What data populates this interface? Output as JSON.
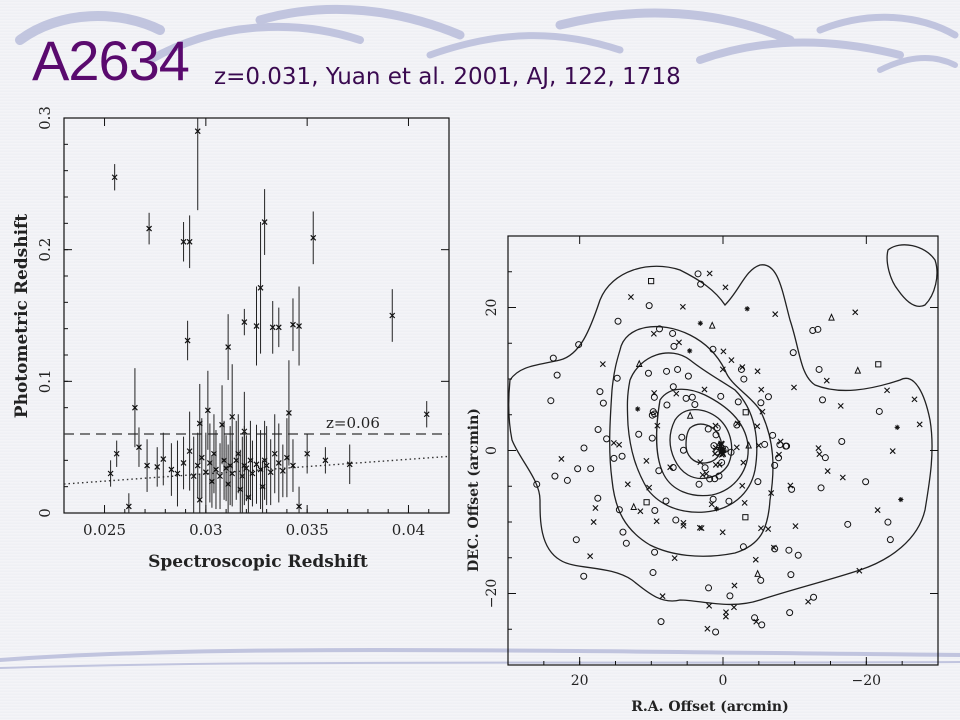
{
  "slide": {
    "title": "A2634",
    "subtitle": "z=0.031, Yuan et al. 2001, AJ, 122, 1718",
    "accent_color": "#5a0a6e"
  },
  "chart_data": [
    {
      "type": "scatter",
      "xlabel": "Spectroscopic Redshift",
      "ylabel": "Photometric Redshift",
      "xlim": [
        0.023,
        0.042
      ],
      "ylim": [
        0,
        0.3
      ],
      "xticks": [
        "0.025",
        "0.03",
        "0.035",
        "0.04"
      ],
      "xtick_values": [
        0.025,
        0.03,
        0.035,
        0.04
      ],
      "yticks": [
        "0",
        "0.1",
        "0.2",
        "0.3"
      ],
      "ytick_values": [
        0,
        0.1,
        0.2,
        0.3
      ],
      "annotation": "z=0.06",
      "threshold_line": 0.06,
      "dotted_fit": [
        [
          0.023,
          0.022
        ],
        [
          0.042,
          0.043
        ]
      ],
      "points": [
        [
          0.0255,
          0.255,
          0.01
        ],
        [
          0.0272,
          0.216,
          0.012
        ],
        [
          0.0289,
          0.206,
          0.015
        ],
        [
          0.0292,
          0.206,
          0.02
        ],
        [
          0.0296,
          0.29,
          0.06
        ],
        [
          0.0329,
          0.221,
          0.025
        ],
        [
          0.0353,
          0.209,
          0.02
        ],
        [
          0.0327,
          0.171,
          0.05
        ],
        [
          0.0291,
          0.131,
          0.015
        ],
        [
          0.0319,
          0.145,
          0.01
        ],
        [
          0.0325,
          0.142,
          0.03
        ],
        [
          0.0333,
          0.141,
          0.02
        ],
        [
          0.0336,
          0.141,
          0.015
        ],
        [
          0.0343,
          0.143,
          0.02
        ],
        [
          0.0346,
          0.142,
          0.03
        ],
        [
          0.0311,
          0.126,
          0.025
        ],
        [
          0.0392,
          0.15,
          0.02
        ],
        [
          0.0409,
          0.075,
          0.01
        ],
        [
          0.0265,
          0.08,
          0.03
        ],
        [
          0.0297,
          0.068,
          0.03
        ],
        [
          0.0301,
          0.078,
          0.03
        ],
        [
          0.0308,
          0.067,
          0.03
        ],
        [
          0.0313,
          0.073,
          0.04
        ],
        [
          0.0319,
          0.062,
          0.03
        ],
        [
          0.0341,
          0.076,
          0.04
        ],
        [
          0.0253,
          0.03,
          0.01
        ],
        [
          0.0256,
          0.045,
          0.01
        ],
        [
          0.0262,
          0.005,
          0.01
        ],
        [
          0.0267,
          0.05,
          0.015
        ],
        [
          0.0271,
          0.036,
          0.02
        ],
        [
          0.0276,
          0.035,
          0.015
        ],
        [
          0.0279,
          0.041,
          0.02
        ],
        [
          0.0283,
          0.033,
          0.02
        ],
        [
          0.0286,
          0.03,
          0.025
        ],
        [
          0.0289,
          0.038,
          0.02
        ],
        [
          0.0292,
          0.047,
          0.03
        ],
        [
          0.0294,
          0.028,
          0.03
        ],
        [
          0.0296,
          0.036,
          0.025
        ],
        [
          0.0298,
          0.042,
          0.03
        ],
        [
          0.03,
          0.031,
          0.03
        ],
        [
          0.0302,
          0.038,
          0.03
        ],
        [
          0.0304,
          0.045,
          0.03
        ],
        [
          0.0305,
          0.033,
          0.03
        ],
        [
          0.0307,
          0.028,
          0.025
        ],
        [
          0.0309,
          0.04,
          0.03
        ],
        [
          0.031,
          0.034,
          0.025
        ],
        [
          0.0312,
          0.036,
          0.03
        ],
        [
          0.0313,
          0.03,
          0.025
        ],
        [
          0.0315,
          0.04,
          0.03
        ],
        [
          0.0316,
          0.045,
          0.03
        ],
        [
          0.0318,
          0.028,
          0.03
        ],
        [
          0.0319,
          0.036,
          0.03
        ],
        [
          0.032,
          0.034,
          0.025
        ],
        [
          0.0322,
          0.04,
          0.03
        ],
        [
          0.0323,
          0.03,
          0.025
        ],
        [
          0.0325,
          0.037,
          0.03
        ],
        [
          0.0327,
          0.033,
          0.03
        ],
        [
          0.0329,
          0.04,
          0.03
        ],
        [
          0.033,
          0.036,
          0.03
        ],
        [
          0.0332,
          0.031,
          0.025
        ],
        [
          0.0334,
          0.045,
          0.03
        ],
        [
          0.0336,
          0.038,
          0.03
        ],
        [
          0.0338,
          0.032,
          0.02
        ],
        [
          0.034,
          0.042,
          0.03
        ],
        [
          0.0343,
          0.036,
          0.02
        ],
        [
          0.0346,
          0.005,
          0.015
        ],
        [
          0.035,
          0.045,
          0.015
        ],
        [
          0.0359,
          0.04,
          0.01
        ],
        [
          0.0371,
          0.037,
          0.015
        ],
        [
          0.0303,
          0.024,
          0.02
        ],
        [
          0.0311,
          0.022,
          0.03
        ],
        [
          0.0317,
          0.018,
          0.03
        ],
        [
          0.0328,
          0.02,
          0.02
        ],
        [
          0.0297,
          0.01,
          0.02
        ],
        [
          0.0321,
          0.012,
          0.02
        ]
      ]
    },
    {
      "type": "scatter",
      "xlabel": "R.A. Offset (arcmin)",
      "ylabel": "DEC. Offset (arcmin)",
      "xlim": [
        30,
        -30
      ],
      "ylim": [
        -30,
        30
      ],
      "xticks": [
        "20",
        "0",
        "−20"
      ],
      "xtick_values": [
        20,
        0,
        -20
      ],
      "yticks": [
        "−20",
        "0",
        "20"
      ],
      "ytick_values": [
        -20,
        0,
        20
      ],
      "contours": "isodensity",
      "marker_types": [
        "circle",
        "cross",
        "square",
        "triangle",
        "asterisk"
      ]
    }
  ]
}
